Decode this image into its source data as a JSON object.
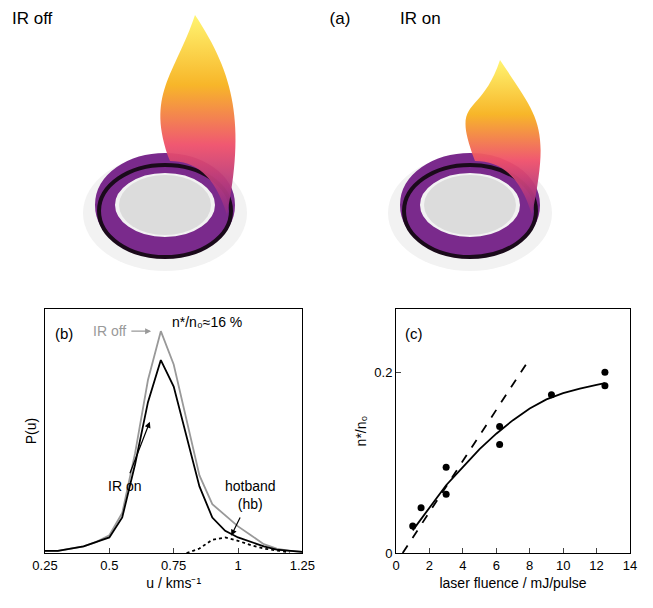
{
  "panel_a": {
    "label": "(a)",
    "left_title": "IR off",
    "right_title": "IR on"
  },
  "chart_data": [
    {
      "type": "line",
      "label": "(b)",
      "x_label": "u / kms⁻¹",
      "y_label": "P(u)",
      "xlim": [
        0.25,
        1.25
      ],
      "xticks": [
        0.25,
        0.5,
        0.75,
        1,
        1.25
      ],
      "ylim": [
        0,
        1.1
      ],
      "yticks": [],
      "tick_labels": "x",
      "grid": false,
      "series": [
        {
          "name": "IR off",
          "color": "#999999",
          "line_style": "solid",
          "x": [
            0.25,
            0.3,
            0.35,
            0.4,
            0.45,
            0.5,
            0.55,
            0.6,
            0.65,
            0.7,
            0.75,
            0.8,
            0.85,
            0.9,
            0.95,
            1.0,
            1.05,
            1.1,
            1.15,
            1.2,
            1.25
          ],
          "values": [
            0.01,
            0.01,
            0.02,
            0.03,
            0.05,
            0.08,
            0.18,
            0.45,
            0.78,
            1.0,
            0.85,
            0.6,
            0.35,
            0.22,
            0.17,
            0.12,
            0.08,
            0.04,
            0.02,
            0.01,
            0.005
          ]
        },
        {
          "name": "IR on",
          "color": "#000000",
          "line_style": "solid",
          "x": [
            0.25,
            0.3,
            0.35,
            0.4,
            0.45,
            0.5,
            0.55,
            0.6,
            0.65,
            0.7,
            0.75,
            0.8,
            0.85,
            0.9,
            0.95,
            1.0,
            1.05,
            1.1,
            1.15,
            1.2,
            1.25
          ],
          "values": [
            0.01,
            0.01,
            0.02,
            0.03,
            0.05,
            0.07,
            0.16,
            0.4,
            0.68,
            0.87,
            0.75,
            0.52,
            0.3,
            0.16,
            0.1,
            0.07,
            0.05,
            0.03,
            0.015,
            0.01,
            0.005
          ]
        },
        {
          "name": "hotband (hb)",
          "color": "#000000",
          "line_style": "dotted",
          "x": [
            0.8,
            0.85,
            0.9,
            0.95,
            1.0,
            1.05,
            1.1,
            1.15,
            1.2
          ],
          "values": [
            0,
            0.02,
            0.06,
            0.07,
            0.055,
            0.035,
            0.02,
            0.01,
            0.003
          ]
        }
      ],
      "annotations": [
        {
          "text": "IR off",
          "x": 0.5,
          "y": 1.0,
          "color": "#999999",
          "arrow_x": 0.67,
          "arrow_y": 1.0
        },
        {
          "text": "n*/n₀≈16 %",
          "x": 0.88,
          "y": 1.04,
          "color": "#000000"
        },
        {
          "text": "IR on",
          "x": 0.56,
          "y": 0.3,
          "color": "#000000",
          "arrow_x": 0.66,
          "arrow_y": 0.6
        },
        {
          "text": "hotband (hb)",
          "x": 1.05,
          "y": 0.26,
          "color": "#000000",
          "arrow_x": 0.97,
          "arrow_y": 0.07
        }
      ]
    },
    {
      "type": "scatter",
      "label": "(c)",
      "x_label": "laser fluence / mJ/pulse",
      "y_label": "n*/n₀",
      "xlim": [
        0,
        14
      ],
      "xticks": [
        0,
        2,
        4,
        6,
        8,
        10,
        12,
        14
      ],
      "ylim": [
        0,
        0.27
      ],
      "yticks": [
        0,
        0.2
      ],
      "grid": false,
      "series": [
        {
          "type": "scatter",
          "marker": "circle",
          "color": "#000000",
          "x": [
            1,
            1.5,
            3,
            3,
            6.2,
            6.2,
            9.3,
            12.5,
            12.5
          ],
          "values": [
            0.03,
            0.05,
            0.095,
            0.065,
            0.14,
            0.12,
            0.175,
            0.2,
            0.185
          ]
        },
        {
          "type": "line",
          "line_style": "solid",
          "color": "#000000",
          "x": [
            1,
            2,
            3,
            4,
            5,
            6,
            7,
            8,
            9,
            10,
            11,
            12,
            12.5
          ],
          "values": [
            0.025,
            0.05,
            0.075,
            0.095,
            0.115,
            0.132,
            0.147,
            0.16,
            0.17,
            0.177,
            0.182,
            0.186,
            0.188
          ]
        },
        {
          "type": "line",
          "line_style": "dashed",
          "color": "#000000",
          "x": [
            0.4,
            8
          ],
          "values": [
            0,
            0.215
          ]
        }
      ]
    }
  ]
}
